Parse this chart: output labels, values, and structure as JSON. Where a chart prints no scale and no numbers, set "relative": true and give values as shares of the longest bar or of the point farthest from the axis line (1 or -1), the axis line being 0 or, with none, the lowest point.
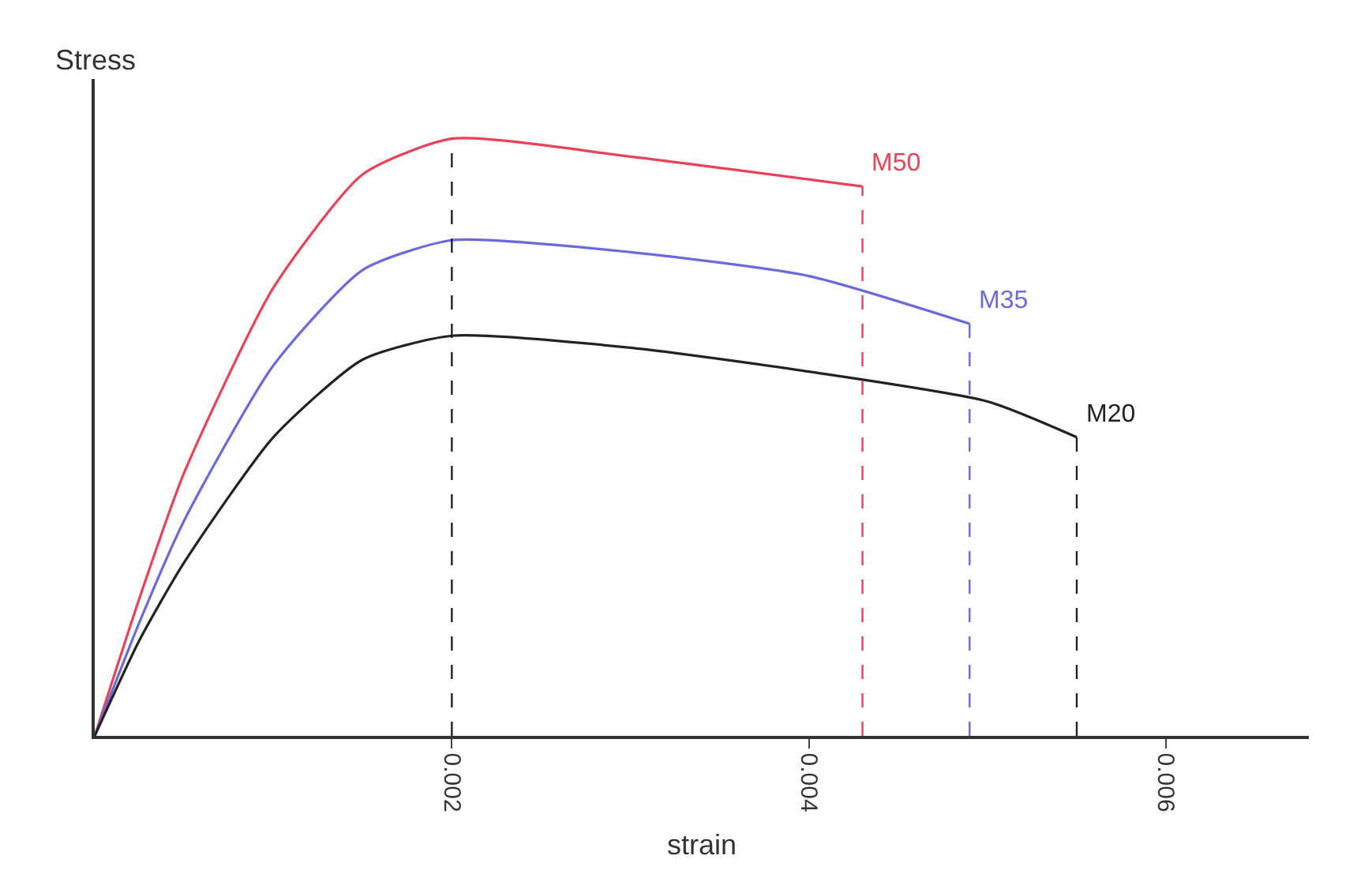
{
  "chart_data": {
    "type": "line",
    "xlabel": "strain",
    "ylabel": "Stress",
    "relative": true,
    "xlim": [
      0,
      0.0068
    ],
    "xticks": [
      0.002,
      0.004,
      0.006
    ],
    "tick_labels": "x",
    "legend": false,
    "marker": "none",
    "line_style": "solid",
    "series": [
      {
        "name": "M50",
        "color": "#e8415a",
        "x": [
          0,
          0.00025,
          0.0005,
          0.001,
          0.0015,
          0.002,
          0.003,
          0.0043
        ],
        "values": [
          0,
          0.23,
          0.44,
          0.75,
          0.94,
          1,
          0.97,
          0.92
        ]
      },
      {
        "name": "M35",
        "color": "#6a6ad8",
        "x": [
          0,
          0.00025,
          0.0005,
          0.001,
          0.0015,
          0.002,
          0.003,
          0.004,
          0.0049
        ],
        "values": [
          0,
          0.19,
          0.36,
          0.62,
          0.78,
          0.83,
          0.81,
          0.77,
          0.69
        ]
      },
      {
        "name": "M20",
        "color": "#222222",
        "x": [
          0,
          0.00025,
          0.0005,
          0.001,
          0.0015,
          0.002,
          0.003,
          0.004,
          0.005,
          0.0055
        ],
        "values": [
          0,
          0.16,
          0.29,
          0.5,
          0.63,
          0.67,
          0.65,
          0.61,
          0.56,
          0.5
        ]
      }
    ],
    "ref_lines": [
      {
        "axis": "x",
        "value": 0.002,
        "color": "#222222",
        "line_style": "dashed"
      },
      {
        "axis": "x",
        "value": 0.0043,
        "color": "#e8415a",
        "line_style": "dashed"
      },
      {
        "axis": "x",
        "value": 0.0049,
        "color": "#6a6ad8",
        "line_style": "dashed"
      },
      {
        "axis": "x",
        "value": 0.0055,
        "color": "#222222",
        "line_style": "dashed"
      }
    ]
  }
}
